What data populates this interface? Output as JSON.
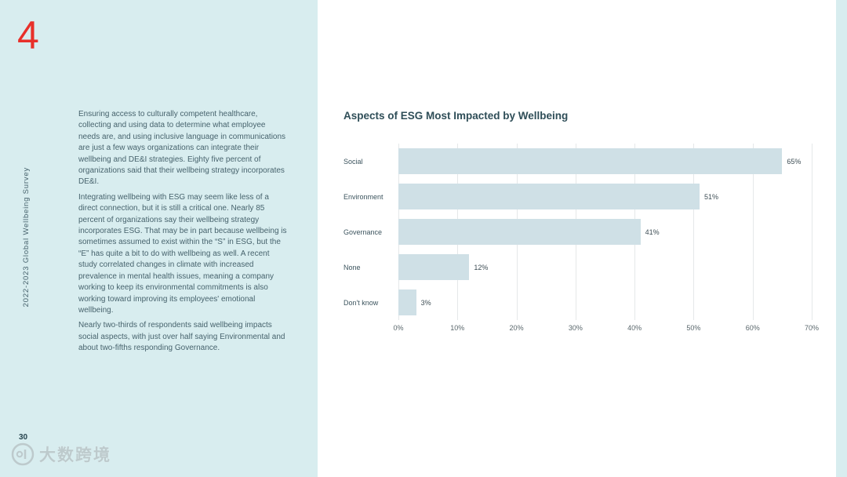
{
  "page": {
    "chapter_number": "4",
    "vertical_title": "2022-2023 Global Wellbeing Survey",
    "page_number": "30",
    "watermark_text": "大数跨境"
  },
  "body": {
    "paragraphs": [
      "Ensuring access to culturally competent healthcare, collecting and using data to determine what employee needs are, and using inclusive language in communications are just a few ways organizations can integrate their wellbeing and DE&I strategies. Eighty five percent of organizations said that their wellbeing strategy incorporates DE&I.",
      "Integrating wellbeing with ESG may seem like less of a direct connection, but it is still a critical one. Nearly 85 percent of organizations say their wellbeing strategy incorporates ESG. That may be in part because wellbeing is sometimes assumed to exist within the “S” in ESG, but the “E” has quite a bit to do with wellbeing as well. A recent study correlated changes in climate with increased prevalence in mental health issues, meaning a company working to keep its environmental commitments is also working toward improving its employees' emotional wellbeing.",
      "Nearly two-thirds of respondents said wellbeing impacts social aspects, with just over half saying Environmental and about two-fifths responding Governance."
    ]
  },
  "chart_data": {
    "type": "bar",
    "orientation": "horizontal",
    "title": "Aspects of ESG Most Impacted by Wellbeing",
    "categories": [
      "Social",
      "Environment",
      "Governance",
      "None",
      "Don't know"
    ],
    "values": [
      65,
      51,
      41,
      12,
      3
    ],
    "value_labels": [
      "65%",
      "51%",
      "41%",
      "12%",
      "3%"
    ],
    "xlabel": "",
    "ylabel": "",
    "xlim": [
      0,
      70
    ],
    "x_ticks": [
      "0%",
      "10%",
      "20%",
      "30%",
      "40%",
      "50%",
      "60%",
      "70%"
    ],
    "grid": true,
    "legend": false,
    "bar_color": "#cfe0e6"
  },
  "colors": {
    "panel": "#d8edef",
    "accent_red": "#e8302a",
    "text": "#47636d",
    "title": "#2f4e58",
    "grid": "#e5e8e9",
    "bar_fill": "#cfe0e6"
  }
}
